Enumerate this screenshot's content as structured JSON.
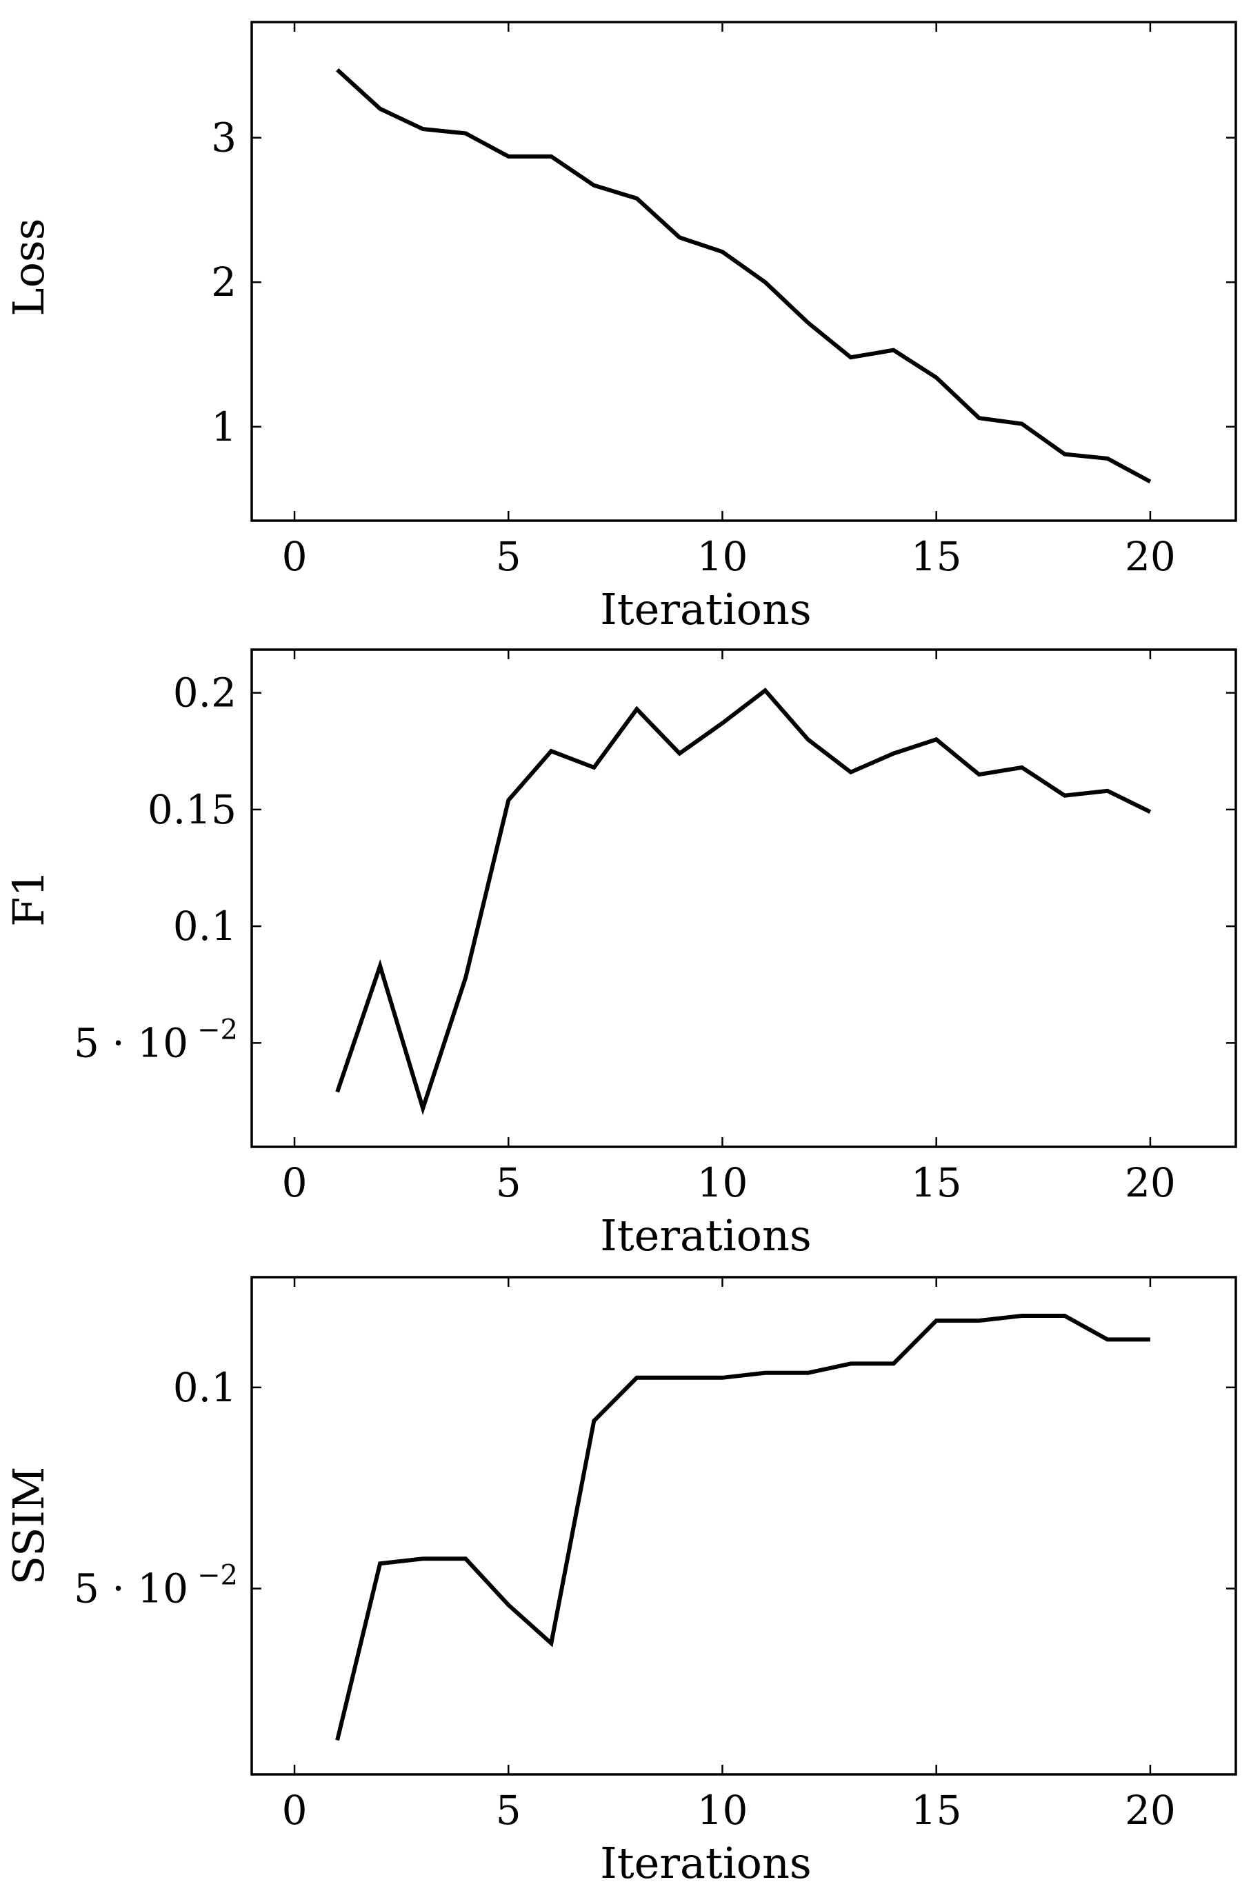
{
  "chart_data": [
    {
      "type": "line",
      "title": "",
      "xlabel": "Iterations",
      "ylabel": "Loss",
      "xlim": [
        -1,
        22
      ],
      "ylim": [
        0.35,
        3.8
      ],
      "xticks": [
        0,
        5,
        10,
        15,
        20
      ],
      "xtick_labels": [
        "0",
        "5",
        "10",
        "15",
        "20"
      ],
      "yticks": [
        1,
        2,
        3
      ],
      "ytick_labels": [
        "1",
        "2",
        "3"
      ],
      "grid": false,
      "series": [
        {
          "name": "Loss",
          "x": [
            1,
            2,
            3,
            4,
            5,
            6,
            7,
            8,
            9,
            10,
            11,
            12,
            13,
            14,
            15,
            16,
            17,
            18,
            19,
            20
          ],
          "values": [
            3.47,
            3.2,
            3.06,
            3.03,
            2.87,
            2.87,
            2.67,
            2.58,
            2.31,
            2.21,
            2.0,
            1.72,
            1.48,
            1.53,
            1.34,
            1.06,
            1.02,
            0.81,
            0.78,
            0.62
          ]
        }
      ]
    },
    {
      "type": "line",
      "title": "",
      "xlabel": "Iterations",
      "ylabel": "F1",
      "xlim": [
        -1,
        22
      ],
      "ylim": [
        0.0055,
        0.2185
      ],
      "xticks": [
        0,
        5,
        10,
        15,
        20
      ],
      "xtick_labels": [
        "0",
        "5",
        "10",
        "15",
        "20"
      ],
      "yticks": [
        0.05,
        0.1,
        0.15,
        0.2
      ],
      "ytick_labels": [
        "5 · 10",
        "0.1",
        "0.15",
        "0.2"
      ],
      "ytick_exponents": [
        "−2",
        "",
        "",
        ""
      ],
      "grid": false,
      "series": [
        {
          "name": "F1",
          "x": [
            1,
            2,
            3,
            4,
            5,
            6,
            7,
            8,
            9,
            10,
            11,
            12,
            13,
            14,
            15,
            16,
            17,
            18,
            19,
            20
          ],
          "values": [
            0.029,
            0.083,
            0.022,
            0.078,
            0.154,
            0.175,
            0.168,
            0.193,
            0.174,
            0.187,
            0.201,
            0.18,
            0.166,
            0.174,
            0.18,
            0.165,
            0.168,
            0.156,
            0.158,
            0.149
          ]
        }
      ]
    },
    {
      "type": "line",
      "title": "",
      "xlabel": "Iterations",
      "ylabel": "SSIM",
      "xlim": [
        -1,
        22
      ],
      "ylim": [
        0.0038,
        0.1274
      ],
      "xticks": [
        0,
        5,
        10,
        15,
        20
      ],
      "xtick_labels": [
        "0",
        "5",
        "10",
        "15",
        "20"
      ],
      "yticks": [
        0.05,
        0.1
      ],
      "ytick_labels": [
        "5 · 10",
        "0.1"
      ],
      "ytick_exponents": [
        "−2",
        ""
      ],
      "grid": false,
      "series": [
        {
          "name": "SSIM",
          "x": [
            1,
            2,
            3,
            4,
            5,
            6,
            7,
            8,
            9,
            10,
            11,
            12,
            13,
            14,
            15,
            16,
            17,
            18,
            19,
            20
          ],
          "values": [
            0.0123,
            0.0562,
            0.0574,
            0.0574,
            0.0459,
            0.0364,
            0.0917,
            0.1024,
            0.1024,
            0.1024,
            0.1036,
            0.1036,
            0.1059,
            0.1059,
            0.1166,
            0.1166,
            0.1178,
            0.1178,
            0.1119,
            0.1119
          ]
        }
      ]
    }
  ]
}
